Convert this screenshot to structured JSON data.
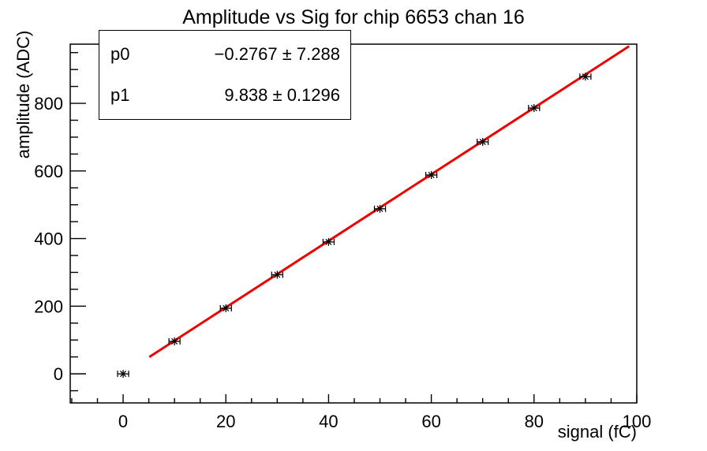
{
  "title": "Amplitude vs Sig for chip 6653 chan 16",
  "stats_box": {
    "rows": [
      {
        "name": "p0",
        "value": "−0.2767 ± 7.288"
      },
      {
        "name": "p1",
        "value": "9.838 ± 0.1296"
      }
    ]
  },
  "chart_data": {
    "type": "scatter",
    "title": "Amplitude vs Sig for chip 6653 chan 16",
    "xlabel": "signal (fC)",
    "ylabel": "amplitude (ADC)",
    "xlim": [
      -10.3,
      100
    ],
    "ylim": [
      -86,
      975
    ],
    "x_major_ticks": [
      0,
      20,
      40,
      60,
      80,
      100
    ],
    "x_minor_step": 5,
    "y_major_ticks": [
      0,
      200,
      400,
      600,
      800
    ],
    "y_minor_step": 50,
    "grid": false,
    "legend": "none",
    "points": {
      "x": [
        0,
        10,
        20,
        30,
        40,
        50,
        60,
        70,
        80,
        90
      ],
      "y": [
        0,
        96,
        194,
        293,
        390,
        488,
        588,
        686,
        786,
        879
      ],
      "xerr": 1,
      "marker": "asterisk",
      "color": "#000000"
    },
    "fit": {
      "p0": -0.2767,
      "p1": 9.838,
      "x_range": [
        5.1,
        98.5
      ],
      "color": "#ee0000",
      "width": 3
    }
  }
}
